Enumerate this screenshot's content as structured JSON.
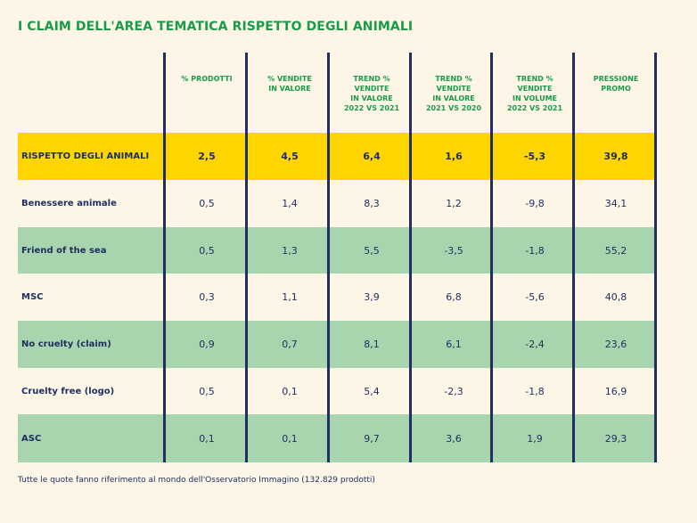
{
  "title": "I CLAIM DELL'AREA TEMATICA RISPETTO DEGLI ANIMALI",
  "headers": [
    "% PRODOTTI",
    "% VENDITE\nIN VALORE",
    "TREND %\nVENDITE\nIN VALORE\n2022 VS 2021",
    "TREND %\nVENDITE\nIN VALORE\n2021 VS 2020",
    "TREND %\nVENDITE\nIN VOLUME\n2022 VS 2021",
    "PRESSIONE\nPROMO"
  ],
  "rows": [
    {
      "label": "RISPETTO DEGLI ANIMALI",
      "values": [
        "2,5",
        "4,5",
        "6,4",
        "1,6",
        "-5,3",
        "39,8"
      ],
      "bg": "#ffd500"
    },
    {
      "label": "Benessere animale",
      "values": [
        "0,5",
        "1,4",
        "8,3",
        "1,2",
        "-9,8",
        "34,1"
      ],
      "bg": "#fdf6e6"
    },
    {
      "label": "Friend of the sea",
      "values": [
        "0,5",
        "1,3",
        "5,5",
        "-3,5",
        "-1,8",
        "55,2"
      ],
      "bg": "#a8d5ad"
    },
    {
      "label": "MSC",
      "values": [
        "0,3",
        "1,1",
        "3,9",
        "6,8",
        "-5,6",
        "40,8"
      ],
      "bg": "#fdf6e6"
    },
    {
      "label": "No cruelty (claim)",
      "values": [
        "0,9",
        "0,7",
        "8,1",
        "6,1",
        "-2,4",
        "23,6"
      ],
      "bg": "#a8d5ad"
    },
    {
      "label": "Cruelty free (logo)",
      "values": [
        "0,5",
        "0,1",
        "5,4",
        "-2,3",
        "-1,8",
        "16,9"
      ],
      "bg": "#fdf6e6"
    },
    {
      "label": "ASC",
      "values": [
        "0,1",
        "0,1",
        "9,7",
        "3,6",
        "1,9",
        "29,3"
      ],
      "bg": "#a8d5ad"
    }
  ],
  "footnote": "Tutte le quote fanno riferimento al mondo dell'Osservatorio Immagino (132.829 prodotti)",
  "colors": {
    "background": "#fdf6e6",
    "accent_green": "#1b9a4a",
    "highlight_yellow": "#ffd500",
    "row_green": "#a8d5ad",
    "navy": "#1f2f63"
  }
}
